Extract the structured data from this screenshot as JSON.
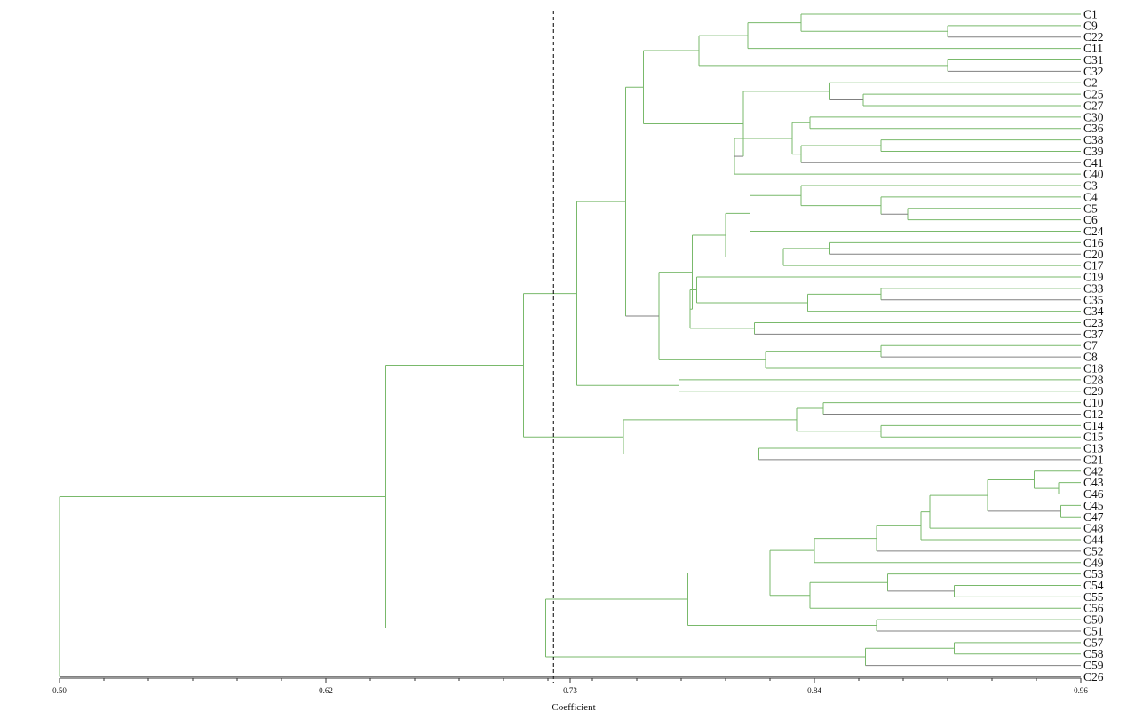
{
  "chart_data": {
    "type": "dendrogram",
    "xlabel": "Coefficient",
    "xlim": [
      0.5,
      0.96
    ],
    "ticks": [
      {
        "value": 0.5,
        "label": "0.50"
      },
      {
        "value": 0.62,
        "label": "0.62"
      },
      {
        "value": 0.73,
        "label": "0.73"
      },
      {
        "value": 0.84,
        "label": "0.84"
      },
      {
        "value": 0.96,
        "label": "0.96"
      }
    ],
    "cutoff": 0.7225,
    "colors": {
      "branch": "#79b96b",
      "branch_dark": "#808080",
      "axis": "#333333",
      "cutoff": "#000000"
    },
    "leaves": [
      "C1",
      "C9",
      "C22",
      "C11",
      "C31",
      "C32",
      "C2",
      "C25",
      "C27",
      "C30",
      "C36",
      "C38",
      "C39",
      "C41",
      "C40",
      "C3",
      "C4",
      "C5",
      "C6",
      "C24",
      "C16",
      "C20",
      "C17",
      "C19",
      "C33",
      "C35",
      "C34",
      "C23",
      "C37",
      "C7",
      "C8",
      "C18",
      "C28",
      "C29",
      "C10",
      "C12",
      "C14",
      "C15",
      "C13",
      "C21",
      "C42",
      "C43",
      "C46",
      "C45",
      "C47",
      "C48",
      "C44",
      "C52",
      "C49",
      "C53",
      "C54",
      "C55",
      "C56",
      "C50",
      "C51",
      "C57",
      "C58",
      "C59",
      "C26"
    ],
    "merges": [
      {
        "children": [
          "C9",
          "C22"
        ],
        "height": 0.9
      },
      {
        "children": [
          "C1",
          [
            "C9",
            "C22"
          ]
        ],
        "height": 0.834
      },
      {
        "children": [
          [
            "C1",
            "C9",
            "C22"
          ],
          "C11"
        ],
        "height": 0.81
      },
      {
        "children": [
          "C31",
          "C32"
        ],
        "height": 0.9
      },
      {
        "children": [
          [
            "C1",
            "C9",
            "C22",
            "C11"
          ],
          [
            "C31",
            "C32"
          ]
        ],
        "height": 0.788
      },
      {
        "children": [
          "C25",
          "C27"
        ],
        "height": 0.862
      },
      {
        "children": [
          "C2",
          [
            "C25",
            "C27"
          ]
        ],
        "height": 0.847
      },
      {
        "children": [
          "C30",
          "C36"
        ],
        "height": 0.838
      },
      {
        "children": [
          "C38",
          "C39"
        ],
        "height": 0.87
      },
      {
        "children": [
          [
            "C38",
            "C39"
          ],
          "C41"
        ],
        "height": 0.834
      },
      {
        "children": [
          [
            "C30",
            "C36"
          ],
          [
            "C38",
            "C39",
            "C41"
          ]
        ],
        "height": 0.83
      },
      {
        "children": [
          [
            "C30",
            "C36",
            "C38",
            "C39",
            "C41"
          ],
          "C40"
        ],
        "height": 0.804
      },
      {
        "children": [
          [
            "C2",
            "C25",
            "C27"
          ],
          [
            "C30",
            "C36",
            "C38",
            "C39",
            "C41",
            "C40"
          ]
        ],
        "height": 0.808
      },
      {
        "children": [
          [
            "C1",
            "C9",
            "C22",
            "C11",
            "C31",
            "C32"
          ],
          [
            "C2",
            "C25",
            "C27",
            "C30",
            "C36",
            "C38",
            "C39",
            "C41",
            "C40"
          ]
        ],
        "height": 0.763
      },
      {
        "children": [
          "C5",
          "C6"
        ],
        "height": 0.882
      },
      {
        "children": [
          "C4",
          [
            "C5",
            "C6"
          ]
        ],
        "height": 0.87
      },
      {
        "children": [
          "C3",
          [
            "C4",
            "C5",
            "C6"
          ]
        ],
        "height": 0.834
      },
      {
        "children": [
          [
            "C3",
            "C4",
            "C5",
            "C6"
          ],
          "C24"
        ],
        "height": 0.811
      },
      {
        "children": [
          "C16",
          "C20"
        ],
        "height": 0.847
      },
      {
        "children": [
          [
            "C16",
            "C20"
          ],
          "C17"
        ],
        "height": 0.826
      },
      {
        "children": [
          [
            "C3",
            "C4",
            "C5",
            "C6",
            "C24"
          ],
          [
            "C16",
            "C20",
            "C17"
          ]
        ],
        "height": 0.8
      },
      {
        "children": [
          "C33",
          "C35"
        ],
        "height": 0.87
      },
      {
        "children": [
          [
            "C33",
            "C35"
          ],
          "C34"
        ],
        "height": 0.837
      },
      {
        "children": [
          "C19",
          [
            "C33",
            "C35",
            "C34"
          ]
        ],
        "height": 0.787
      },
      {
        "children": [
          "C23",
          "C37"
        ],
        "height": 0.813
      },
      {
        "children": [
          [
            "C19",
            "C33",
            "C35",
            "C34"
          ],
          [
            "C23",
            "C37"
          ]
        ],
        "height": 0.784
      },
      {
        "children": [
          [
            "C3",
            "C4",
            "C5",
            "C6",
            "C24",
            "C16",
            "C20",
            "C17"
          ],
          [
            "C19",
            "C33",
            "C35",
            "C34",
            "C23",
            "C37"
          ]
        ],
        "height": 0.785
      },
      {
        "children": [
          "C7",
          "C8"
        ],
        "height": 0.87
      },
      {
        "children": [
          [
            "C7",
            "C8"
          ],
          "C18"
        ],
        "height": 0.818
      },
      {
        "children": [
          [
            "C3",
            "C4",
            "C5",
            "C6",
            "C24",
            "C16",
            "C20",
            "C17",
            "C19",
            "C33",
            "C35",
            "C34",
            "C23",
            "C37"
          ],
          [
            "C7",
            "C8",
            "C18"
          ]
        ],
        "height": 0.77
      },
      {
        "children": [
          [
            "C1",
            "C9",
            "C22",
            "C11",
            "C31",
            "C32",
            "C2",
            "C25",
            "C27",
            "C30",
            "C36",
            "C38",
            "C39",
            "C41",
            "C40"
          ],
          [
            "C3",
            "C4",
            "C5",
            "C6",
            "C24",
            "C16",
            "C20",
            "C17",
            "C19",
            "C33",
            "C35",
            "C34",
            "C23",
            "C37",
            "C7",
            "C8",
            "C18"
          ]
        ],
        "height": 0.755
      },
      {
        "children": [
          "C28",
          "C29"
        ],
        "height": 0.779
      },
      {
        "children": [
          [
            "C1",
            "C9",
            "C22",
            "C11",
            "C31",
            "C32",
            "C2",
            "C25",
            "C27",
            "C30",
            "C36",
            "C38",
            "C39",
            "C41",
            "C40",
            "C3",
            "C4",
            "C5",
            "C6",
            "C24",
            "C16",
            "C20",
            "C17",
            "C19",
            "C33",
            "C35",
            "C34",
            "C23",
            "C37",
            "C7",
            "C8",
            "C18"
          ],
          [
            "C28",
            "C29"
          ]
        ],
        "height": 0.733
      },
      {
        "children": [
          "C10",
          "C12"
        ],
        "height": 0.844
      },
      {
        "children": [
          "C14",
          "C15"
        ],
        "height": 0.87
      },
      {
        "children": [
          [
            "C10",
            "C12"
          ],
          [
            "C14",
            "C15"
          ]
        ],
        "height": 0.832
      },
      {
        "children": [
          "C13",
          "C21"
        ],
        "height": 0.815
      },
      {
        "children": [
          [
            "C10",
            "C12",
            "C14",
            "C15"
          ],
          [
            "C13",
            "C21"
          ]
        ],
        "height": 0.754
      },
      {
        "children": [
          [
            "C1",
            "C9",
            "C22",
            "C11",
            "C31",
            "C32",
            "C2",
            "C25",
            "C27",
            "C30",
            "C36",
            "C38",
            "C39",
            "C41",
            "C40",
            "C3",
            "C4",
            "C5",
            "C6",
            "C24",
            "C16",
            "C20",
            "C17",
            "C19",
            "C33",
            "C35",
            "C34",
            "C23",
            "C37",
            "C7",
            "C8",
            "C18",
            "C28",
            "C29"
          ],
          [
            "C10",
            "C12",
            "C14",
            "C15",
            "C13",
            "C21"
          ]
        ],
        "height": 0.709
      },
      {
        "children": [
          "C43",
          "C46"
        ],
        "height": 0.95
      },
      {
        "children": [
          "C42",
          [
            "C43",
            "C46"
          ]
        ],
        "height": 0.939
      },
      {
        "children": [
          "C45",
          "C47"
        ],
        "height": 0.951
      },
      {
        "children": [
          [
            "C42",
            "C43",
            "C46"
          ],
          [
            "C45",
            "C47"
          ]
        ],
        "height": 0.918
      },
      {
        "children": [
          [
            "C42",
            "C43",
            "C46",
            "C45",
            "C47"
          ],
          "C48"
        ],
        "height": 0.892
      },
      {
        "children": [
          [
            "C42",
            "C43",
            "C46",
            "C45",
            "C47",
            "C48"
          ],
          "C44"
        ],
        "height": 0.888
      },
      {
        "children": [
          [
            "C42",
            "C43",
            "C46",
            "C45",
            "C47",
            "C48",
            "C44"
          ],
          "C52"
        ],
        "height": 0.868
      },
      {
        "children": [
          [
            "C42",
            "C43",
            "C46",
            "C45",
            "C47",
            "C48",
            "C44",
            "C52"
          ],
          "C49"
        ],
        "height": 0.84
      },
      {
        "children": [
          "C54",
          "C55"
        ],
        "height": 0.903
      },
      {
        "children": [
          "C53",
          [
            "C54",
            "C55"
          ]
        ],
        "height": 0.873
      },
      {
        "children": [
          [
            "C53",
            "C54",
            "C55"
          ],
          "C56"
        ],
        "height": 0.838
      },
      {
        "children": [
          [
            "C42",
            "C43",
            "C46",
            "C45",
            "C47",
            "C48",
            "C44",
            "C52",
            "C49"
          ],
          [
            "C53",
            "C54",
            "C55",
            "C56"
          ]
        ],
        "height": 0.82
      },
      {
        "children": [
          "C50",
          "C51"
        ],
        "height": 0.868
      },
      {
        "children": [
          [
            "C42",
            "C43",
            "C46",
            "C45",
            "C47",
            "C48",
            "C44",
            "C52",
            "C49",
            "C53",
            "C54",
            "C55",
            "C56"
          ],
          [
            "C50",
            "C51"
          ]
        ],
        "height": 0.783
      },
      {
        "children": [
          "C57",
          "C58"
        ],
        "height": 0.903
      },
      {
        "children": [
          [
            "C57",
            "C58"
          ],
          "C59"
        ],
        "height": 0.863
      },
      {
        "children": [
          [
            "C42",
            "C43",
            "C46",
            "C45",
            "C47",
            "C48",
            "C44",
            "C52",
            "C49",
            "C53",
            "C54",
            "C55",
            "C56",
            "C50",
            "C51"
          ],
          [
            "C57",
            "C58",
            "C59"
          ]
        ],
        "height": 0.719
      },
      {
        "children": [
          [
            "C1",
            "C9",
            "C22",
            "C11",
            "C31",
            "C32",
            "C2",
            "C25",
            "C27",
            "C30",
            "C36",
            "C38",
            "C39",
            "C41",
            "C40",
            "C3",
            "C4",
            "C5",
            "C6",
            "C24",
            "C16",
            "C20",
            "C17",
            "C19",
            "C33",
            "C35",
            "C34",
            "C23",
            "C37",
            "C7",
            "C8",
            "C18",
            "C28",
            "C29",
            "C10",
            "C12",
            "C14",
            "C15",
            "C13",
            "C21"
          ],
          [
            "C42",
            "C43",
            "C46",
            "C45",
            "C47",
            "C48",
            "C44",
            "C52",
            "C49",
            "C53",
            "C54",
            "C55",
            "C56",
            "C50",
            "C51",
            "C57",
            "C58",
            "C59"
          ]
        ],
        "height": 0.647
      },
      {
        "children": [
          [
            "C1",
            "C9",
            "C22",
            "C11",
            "C31",
            "C32",
            "C2",
            "C25",
            "C27",
            "C30",
            "C36",
            "C38",
            "C39",
            "C41",
            "C40",
            "C3",
            "C4",
            "C5",
            "C6",
            "C24",
            "C16",
            "C20",
            "C17",
            "C19",
            "C33",
            "C35",
            "C34",
            "C23",
            "C37",
            "C7",
            "C8",
            "C18",
            "C28",
            "C29",
            "C10",
            "C12",
            "C14",
            "C15",
            "C13",
            "C21",
            "C42",
            "C43",
            "C46",
            "C45",
            "C47",
            "C48",
            "C44",
            "C52",
            "C49",
            "C53",
            "C54",
            "C55",
            "C56",
            "C50",
            "C51",
            "C57",
            "C58",
            "C59"
          ],
          "C26"
        ],
        "height": 0.5
      }
    ]
  }
}
